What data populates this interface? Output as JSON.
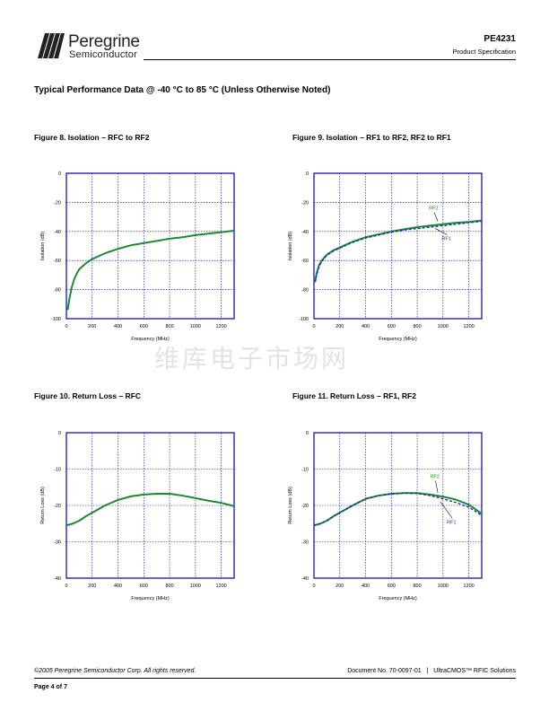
{
  "header": {
    "logo_name": "Peregrine",
    "logo_sub": "Semiconductor",
    "part_number": "PE4231",
    "doc_type": "Product Specification"
  },
  "section_title": "Typical Performance Data @ -40 °C to 85 °C (Unless Otherwise Noted)",
  "watermark": "维库电子市场网",
  "colors": {
    "green": "#1e8a2e",
    "blue": "#1f2fbf",
    "axis": "#0000aa"
  },
  "chart_data": [
    {
      "id": "fig8",
      "type": "line",
      "title": "Figure 8.  Isolation – RFC to RF2",
      "xlabel": "Frequency (MHz)",
      "ylabel": "Isolation (dB)",
      "xlim": [
        0,
        1300
      ],
      "ylim": [
        -100,
        0
      ],
      "xticks": [
        0,
        200,
        400,
        600,
        800,
        1000,
        1200
      ],
      "yticks": [
        0,
        -20,
        -40,
        -60,
        -80,
        -100
      ],
      "grid": true,
      "series": [
        {
          "color": "#1e8a2e",
          "x": [
            10,
            20,
            40,
            60,
            80,
            100,
            150,
            200,
            300,
            400,
            500,
            600,
            700,
            800,
            900,
            1000,
            1100,
            1200,
            1300
          ],
          "y": [
            -94,
            -88,
            -79,
            -73,
            -69,
            -66,
            -62,
            -59,
            -55,
            -52,
            -49.5,
            -48,
            -46.5,
            -45,
            -44,
            -42.5,
            -41.5,
            -40.5,
            -39.5
          ]
        }
      ],
      "annotations": []
    },
    {
      "id": "fig9",
      "type": "line",
      "title": "Figure 9. Isolation – RF1 to RF2, RF2 to RF1",
      "xlabel": "Frequency (MHz)",
      "ylabel": "Isolation (dB)",
      "xlim": [
        0,
        1300
      ],
      "ylim": [
        -100,
        0
      ],
      "xticks": [
        0,
        200,
        400,
        600,
        800,
        1000,
        1200
      ],
      "yticks": [
        0,
        -20,
        -40,
        -60,
        -80,
        -100
      ],
      "grid": true,
      "series": [
        {
          "name": "RF2",
          "color": "#1e8a2e",
          "x": [
            10,
            20,
            40,
            60,
            80,
            100,
            150,
            200,
            300,
            400,
            500,
            600,
            700,
            800,
            900,
            1000,
            1100,
            1200,
            1300
          ],
          "y": [
            -74,
            -69,
            -63,
            -60,
            -58,
            -56,
            -53,
            -51,
            -47,
            -44,
            -42,
            -40,
            -38.5,
            -37,
            -36,
            -35,
            -34,
            -33.5,
            -32.5
          ]
        },
        {
          "name": "RF1",
          "color": "#1f2fbf",
          "dashed": true,
          "x": [
            10,
            20,
            40,
            60,
            80,
            100,
            150,
            200,
            300,
            400,
            500,
            600,
            700,
            800,
            900,
            1000,
            1100,
            1200,
            1300
          ],
          "y": [
            -75,
            -70,
            -64,
            -61,
            -58.5,
            -56.5,
            -53.5,
            -51.5,
            -47.5,
            -44.5,
            -42.5,
            -40.5,
            -39,
            -38,
            -37,
            -36,
            -35,
            -34,
            -33
          ]
        }
      ],
      "annotations": [
        {
          "text": "RF2",
          "color": "#1e8a2e",
          "x": 890,
          "y": -25,
          "ax": 960,
          "ay": -33
        },
        {
          "text": "RF1",
          "color": "#1f2fbf",
          "x": 990,
          "y": -46,
          "ax": 940,
          "ay": -38
        }
      ]
    },
    {
      "id": "fig10",
      "type": "line",
      "title": "Figure 10.  Return Loss – RFC",
      "xlabel": "Frequency (MHz)",
      "ylabel": "Return Loss (dB)",
      "xlim": [
        0,
        1300
      ],
      "ylim": [
        -40,
        0
      ],
      "xticks": [
        0,
        200,
        400,
        600,
        800,
        1000,
        1200
      ],
      "yticks": [
        0,
        -10,
        -20,
        -30,
        -40
      ],
      "grid": true,
      "series": [
        {
          "color": "#1e8a2e",
          "x": [
            0,
            50,
            100,
            150,
            200,
            300,
            400,
            500,
            600,
            700,
            800,
            900,
            1000,
            1100,
            1200,
            1300
          ],
          "y": [
            -25.5,
            -25,
            -24.2,
            -23,
            -22,
            -20,
            -18.5,
            -17.5,
            -17,
            -16.8,
            -16.8,
            -17.3,
            -18,
            -18.7,
            -19.3,
            -20.2
          ]
        }
      ],
      "annotations": []
    },
    {
      "id": "fig11",
      "type": "line",
      "title": "Figure 11.  Return Loss – RF1, RF2",
      "xlabel": "Frequency (MHz)",
      "ylabel": "Return Loss (dB)",
      "xlim": [
        0,
        1300
      ],
      "ylim": [
        -40,
        0
      ],
      "xticks": [
        0,
        200,
        400,
        600,
        800,
        1000,
        1200
      ],
      "yticks": [
        0,
        -10,
        -20,
        -30,
        -40
      ],
      "grid": true,
      "series": [
        {
          "name": "RF2",
          "color": "#1e8a2e",
          "x": [
            0,
            50,
            100,
            150,
            200,
            300,
            400,
            500,
            600,
            700,
            800,
            900,
            1000,
            1100,
            1200,
            1250,
            1300
          ],
          "y": [
            -25.5,
            -25,
            -24.2,
            -23,
            -22,
            -20,
            -18.2,
            -17.3,
            -16.8,
            -16.6,
            -16.6,
            -17,
            -17.6,
            -18.4,
            -19.8,
            -21,
            -22.3
          ]
        },
        {
          "name": "RF1",
          "color": "#1f2fbf",
          "dashed": true,
          "x": [
            0,
            50,
            100,
            150,
            200,
            300,
            400,
            500,
            600,
            700,
            800,
            900,
            1000,
            1100,
            1200,
            1250,
            1300
          ],
          "y": [
            -25.5,
            -25,
            -24.2,
            -23,
            -22,
            -20,
            -18.2,
            -17.3,
            -16.8,
            -16.6,
            -16.7,
            -17.3,
            -18.2,
            -19.2,
            -20.5,
            -21.6,
            -22.8
          ]
        }
      ],
      "annotations": [
        {
          "text": "RF2",
          "color": "#1e8a2e",
          "x": 900,
          "y": -12.5,
          "ax": 960,
          "ay": -16.5
        },
        {
          "text": "RF1",
          "color": "#1f2fbf",
          "x": 1030,
          "y": -25,
          "ax": 980,
          "ay": -19
        }
      ]
    }
  ],
  "footer": {
    "copyright": "©2005 Peregrine Semiconductor Corp.  All rights reserved.",
    "doc_number": "Document No. 70-0097-01",
    "separator": "|",
    "product_line": "UltraCMOS™ RFIC Solutions",
    "page": "Page  4 of 7"
  }
}
